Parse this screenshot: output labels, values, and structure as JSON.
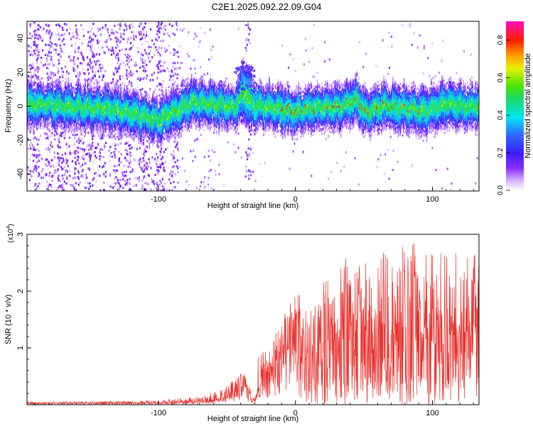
{
  "title": "C2E1.2025.092.22.09.G04",
  "colors": {
    "snr_line": "#e8302c",
    "axis": "#000000",
    "background": "#ffffff"
  },
  "chart_data": [
    {
      "type": "heatmap",
      "xlabel": "Height of straight line (km)",
      "ylabel": "Frequency (Hz)",
      "xlim": [
        -196,
        134
      ],
      "ylim": [
        -50,
        50
      ],
      "xticks": [
        -100,
        0,
        100
      ],
      "yticks": [
        -40,
        -20,
        0,
        20,
        40
      ],
      "colorbar": {
        "label": "Normalized spectral amplitude",
        "range": [
          0,
          0.9
        ],
        "ticks": [
          "0.0",
          "0.2",
          "0.4",
          "0.6",
          "0.8"
        ],
        "colormap": "rainbow (white-lavender-purple-blue-cyan-green-yellow-red-magenta)"
      },
      "ridge_center_hz": [
        {
          "x": -196,
          "y": 2
        },
        {
          "x": -175,
          "y": 1
        },
        {
          "x": -155,
          "y": 0
        },
        {
          "x": -135,
          "y": -1
        },
        {
          "x": -115,
          "y": -4
        },
        {
          "x": -100,
          "y": -8
        },
        {
          "x": -90,
          "y": -3
        },
        {
          "x": -75,
          "y": 3
        },
        {
          "x": -60,
          "y": 2
        },
        {
          "x": -45,
          "y": 0
        },
        {
          "x": -38,
          "y": 10
        },
        {
          "x": -30,
          "y": 1
        },
        {
          "x": -15,
          "y": 0
        },
        {
          "x": 0,
          "y": -3
        },
        {
          "x": 15,
          "y": 0
        },
        {
          "x": 30,
          "y": 0
        },
        {
          "x": 45,
          "y": 4
        },
        {
          "x": 50,
          "y": -3
        },
        {
          "x": 65,
          "y": 1
        },
        {
          "x": 80,
          "y": -1
        },
        {
          "x": 95,
          "y": -2
        },
        {
          "x": 110,
          "y": 2
        },
        {
          "x": 125,
          "y": 0
        },
        {
          "x": 134,
          "y": 1
        }
      ]
    },
    {
      "type": "line",
      "xlabel": "Height of straight line (km)",
      "ylabel": "SNR (10 * v/v)",
      "y_multiplier": "(x10^4)",
      "multiplier_base": "(x10",
      "multiplier_exp": "4",
      "multiplier_close": ")",
      "xlim": [
        -196,
        134
      ],
      "ylim": [
        0,
        3
      ],
      "xticks": [
        -100,
        0,
        100
      ],
      "yticks": [
        1,
        2,
        3
      ],
      "series": [
        {
          "name": "SNR",
          "envelope_max": [
            {
              "x": -196,
              "y": 0.05
            },
            {
              "x": -150,
              "y": 0.06
            },
            {
              "x": -100,
              "y": 0.08
            },
            {
              "x": -70,
              "y": 0.15
            },
            {
              "x": -55,
              "y": 0.25
            },
            {
              "x": -45,
              "y": 0.45
            },
            {
              "x": -40,
              "y": 0.75
            },
            {
              "x": -36,
              "y": 0.55
            },
            {
              "x": -30,
              "y": 0.2
            },
            {
              "x": -26,
              "y": 1.25
            },
            {
              "x": -20,
              "y": 0.95
            },
            {
              "x": -10,
              "y": 1.55
            },
            {
              "x": 0,
              "y": 2.0
            },
            {
              "x": 15,
              "y": 2.05
            },
            {
              "x": 30,
              "y": 2.35
            },
            {
              "x": 45,
              "y": 2.85
            },
            {
              "x": 60,
              "y": 2.7
            },
            {
              "x": 80,
              "y": 3.0
            },
            {
              "x": 100,
              "y": 2.7
            },
            {
              "x": 120,
              "y": 2.7
            },
            {
              "x": 134,
              "y": 2.65
            }
          ],
          "envelope_mean": [
            {
              "x": -196,
              "y": 0.02
            },
            {
              "x": -100,
              "y": 0.03
            },
            {
              "x": -60,
              "y": 0.06
            },
            {
              "x": -45,
              "y": 0.15
            },
            {
              "x": -38,
              "y": 0.3
            },
            {
              "x": -30,
              "y": 0.06
            },
            {
              "x": -25,
              "y": 0.35
            },
            {
              "x": -10,
              "y": 0.75
            },
            {
              "x": 0,
              "y": 0.95
            },
            {
              "x": 20,
              "y": 1.05
            },
            {
              "x": 40,
              "y": 1.2
            },
            {
              "x": 60,
              "y": 1.25
            },
            {
              "x": 80,
              "y": 1.3
            },
            {
              "x": 100,
              "y": 1.25
            },
            {
              "x": 134,
              "y": 1.2
            }
          ]
        }
      ]
    }
  ]
}
